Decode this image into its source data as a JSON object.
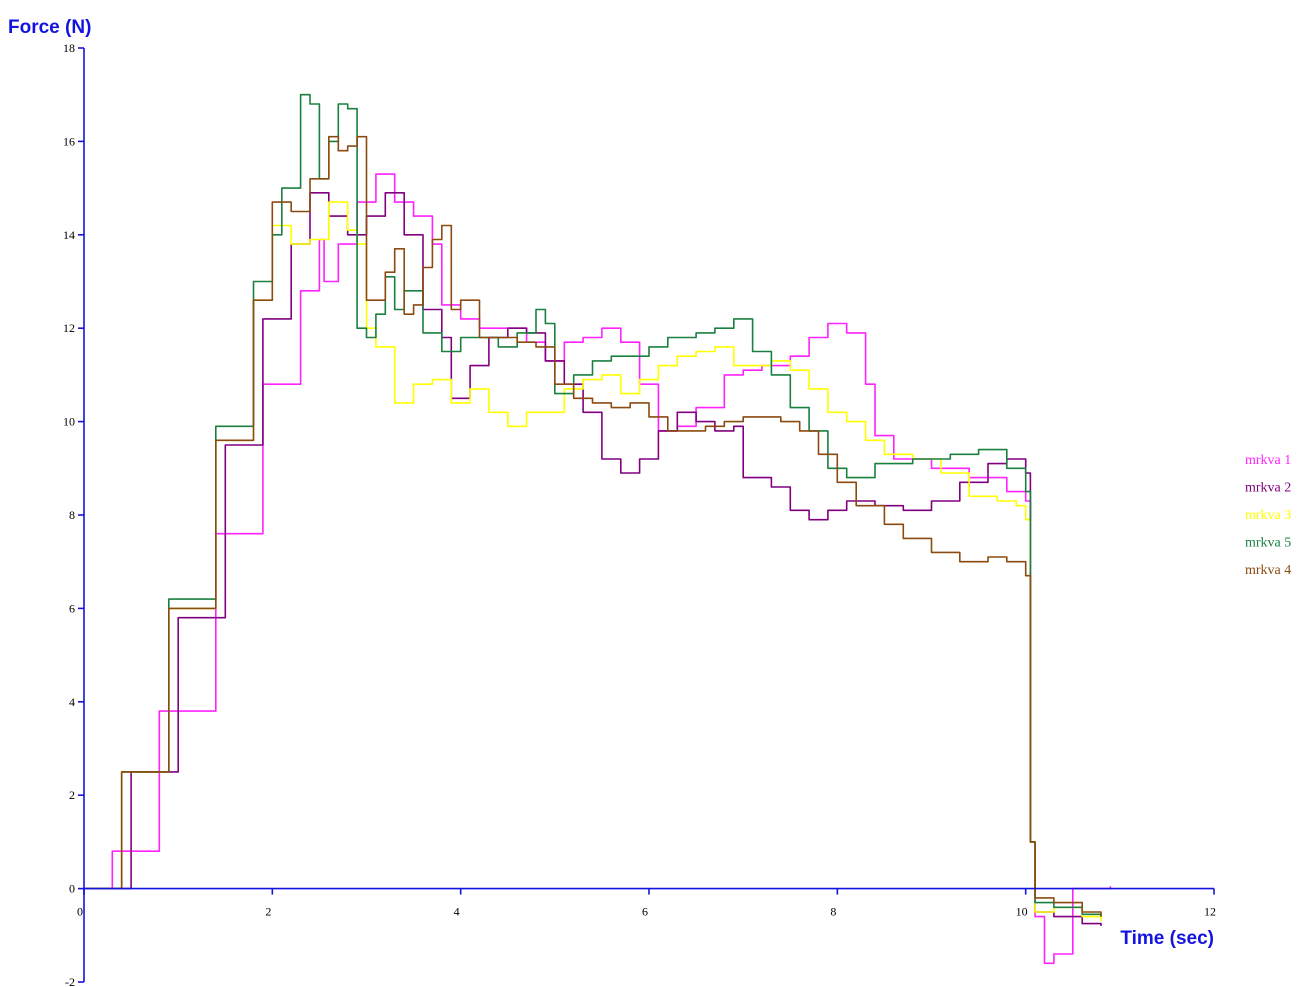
{
  "chart_data": {
    "type": "line",
    "xlabel": "Time (sec)",
    "ylabel": "Force (N)",
    "xlim": [
      0,
      12
    ],
    "ylim": [
      -2,
      18
    ],
    "x_ticks": [
      0,
      2,
      4,
      6,
      8,
      10,
      12
    ],
    "y_ticks": [
      -2,
      0,
      2,
      4,
      6,
      8,
      10,
      12,
      14,
      16,
      18
    ],
    "grid": false,
    "legend": "right",
    "series": [
      {
        "name": "mrkva 1",
        "color": "#ff22ff",
        "points": [
          [
            0,
            0
          ],
          [
            0.3,
            0.8
          ],
          [
            0.8,
            3.8
          ],
          [
            1.4,
            7.6
          ],
          [
            1.9,
            10.8
          ],
          [
            2.3,
            12.8
          ],
          [
            2.5,
            13.9
          ],
          [
            2.55,
            13.0
          ],
          [
            2.7,
            13.8
          ],
          [
            2.9,
            14.7
          ],
          [
            3.1,
            15.3
          ],
          [
            3.3,
            14.7
          ],
          [
            3.5,
            14.4
          ],
          [
            3.7,
            13.8
          ],
          [
            3.8,
            12.5
          ],
          [
            4.0,
            12.2
          ],
          [
            4.2,
            12.0
          ],
          [
            4.4,
            12.0
          ],
          [
            4.7,
            11.7
          ],
          [
            4.9,
            11.3
          ],
          [
            5.1,
            11.7
          ],
          [
            5.3,
            11.8
          ],
          [
            5.5,
            12.0
          ],
          [
            5.7,
            11.7
          ],
          [
            5.9,
            10.8
          ],
          [
            6.1,
            9.8
          ],
          [
            6.3,
            9.9
          ],
          [
            6.5,
            10.3
          ],
          [
            6.8,
            11.0
          ],
          [
            7.0,
            11.1
          ],
          [
            7.2,
            11.2
          ],
          [
            7.5,
            11.4
          ],
          [
            7.7,
            11.8
          ],
          [
            7.9,
            12.1
          ],
          [
            8.1,
            11.9
          ],
          [
            8.3,
            10.8
          ],
          [
            8.4,
            9.7
          ],
          [
            8.6,
            9.2
          ],
          [
            9.0,
            9.0
          ],
          [
            9.4,
            8.8
          ],
          [
            9.8,
            8.5
          ],
          [
            10.0,
            8.3
          ],
          [
            10.05,
            1.0
          ],
          [
            10.1,
            -0.6
          ],
          [
            10.2,
            -1.6
          ],
          [
            10.3,
            -1.4
          ],
          [
            10.5,
            0.0
          ],
          [
            10.9,
            0.05
          ]
        ]
      },
      {
        "name": "mrkva 2",
        "color": "#800080",
        "points": [
          [
            0,
            0
          ],
          [
            0.5,
            2.5
          ],
          [
            1.0,
            5.8
          ],
          [
            1.5,
            9.5
          ],
          [
            1.9,
            12.2
          ],
          [
            2.2,
            13.8
          ],
          [
            2.4,
            14.9
          ],
          [
            2.6,
            14.4
          ],
          [
            2.8,
            14.0
          ],
          [
            3.0,
            14.4
          ],
          [
            3.2,
            14.9
          ],
          [
            3.4,
            14.0
          ],
          [
            3.6,
            12.4
          ],
          [
            3.8,
            11.8
          ],
          [
            3.9,
            10.5
          ],
          [
            4.1,
            11.2
          ],
          [
            4.3,
            11.8
          ],
          [
            4.5,
            12.0
          ],
          [
            4.7,
            11.9
          ],
          [
            4.9,
            11.3
          ],
          [
            5.1,
            10.8
          ],
          [
            5.3,
            10.2
          ],
          [
            5.5,
            9.2
          ],
          [
            5.7,
            8.9
          ],
          [
            5.9,
            9.2
          ],
          [
            6.1,
            9.8
          ],
          [
            6.3,
            10.2
          ],
          [
            6.5,
            10.0
          ],
          [
            6.7,
            9.8
          ],
          [
            6.9,
            9.9
          ],
          [
            7.0,
            8.8
          ],
          [
            7.3,
            8.6
          ],
          [
            7.5,
            8.1
          ],
          [
            7.7,
            7.9
          ],
          [
            7.9,
            8.1
          ],
          [
            8.1,
            8.3
          ],
          [
            8.4,
            8.2
          ],
          [
            8.7,
            8.1
          ],
          [
            9.0,
            8.3
          ],
          [
            9.3,
            8.7
          ],
          [
            9.6,
            9.1
          ],
          [
            9.8,
            9.2
          ],
          [
            10.0,
            8.9
          ],
          [
            10.05,
            1.0
          ],
          [
            10.1,
            -0.5
          ],
          [
            10.3,
            -0.6
          ],
          [
            10.6,
            -0.75
          ],
          [
            10.8,
            -0.8
          ]
        ]
      },
      {
        "name": "mrkva 3",
        "color": "#ffff00",
        "points": [
          [
            0,
            0
          ],
          [
            0.4,
            2.5
          ],
          [
            0.9,
            6.0
          ],
          [
            1.4,
            9.6
          ],
          [
            1.8,
            12.6
          ],
          [
            2.0,
            14.2
          ],
          [
            2.2,
            13.8
          ],
          [
            2.4,
            13.9
          ],
          [
            2.6,
            14.7
          ],
          [
            2.8,
            14.1
          ],
          [
            2.9,
            13.8
          ],
          [
            3.0,
            12.0
          ],
          [
            3.1,
            11.6
          ],
          [
            3.3,
            10.4
          ],
          [
            3.5,
            10.8
          ],
          [
            3.7,
            10.9
          ],
          [
            3.9,
            10.4
          ],
          [
            4.1,
            10.7
          ],
          [
            4.3,
            10.2
          ],
          [
            4.5,
            9.9
          ],
          [
            4.7,
            10.2
          ],
          [
            4.9,
            10.2
          ],
          [
            5.1,
            10.7
          ],
          [
            5.3,
            10.9
          ],
          [
            5.5,
            11.0
          ],
          [
            5.7,
            10.6
          ],
          [
            5.9,
            10.9
          ],
          [
            6.1,
            11.2
          ],
          [
            6.3,
            11.4
          ],
          [
            6.5,
            11.5
          ],
          [
            6.7,
            11.6
          ],
          [
            6.9,
            11.2
          ],
          [
            7.1,
            11.2
          ],
          [
            7.3,
            11.3
          ],
          [
            7.5,
            11.1
          ],
          [
            7.7,
            10.7
          ],
          [
            7.9,
            10.2
          ],
          [
            8.1,
            10.0
          ],
          [
            8.3,
            9.6
          ],
          [
            8.5,
            9.3
          ],
          [
            8.8,
            9.2
          ],
          [
            9.1,
            8.9
          ],
          [
            9.4,
            8.4
          ],
          [
            9.7,
            8.3
          ],
          [
            9.9,
            8.2
          ],
          [
            10.0,
            7.9
          ],
          [
            10.05,
            1.0
          ],
          [
            10.1,
            -0.5
          ],
          [
            10.3,
            -0.4
          ],
          [
            10.6,
            -0.6
          ],
          [
            10.8,
            -0.7
          ]
        ]
      },
      {
        "name": "mrkva 5",
        "color": "#1a8040",
        "points": [
          [
            0,
            0
          ],
          [
            0.4,
            2.5
          ],
          [
            0.9,
            6.2
          ],
          [
            1.4,
            9.9
          ],
          [
            1.8,
            13.0
          ],
          [
            2.0,
            14.0
          ],
          [
            2.1,
            15.0
          ],
          [
            2.3,
            17.0
          ],
          [
            2.4,
            16.8
          ],
          [
            2.5,
            15.2
          ],
          [
            2.6,
            16.0
          ],
          [
            2.7,
            16.8
          ],
          [
            2.8,
            16.7
          ],
          [
            2.9,
            12.0
          ],
          [
            3.0,
            11.8
          ],
          [
            3.1,
            12.3
          ],
          [
            3.2,
            13.1
          ],
          [
            3.3,
            12.4
          ],
          [
            3.4,
            12.8
          ],
          [
            3.6,
            11.9
          ],
          [
            3.8,
            11.5
          ],
          [
            4.0,
            11.8
          ],
          [
            4.2,
            11.8
          ],
          [
            4.4,
            11.6
          ],
          [
            4.6,
            11.9
          ],
          [
            4.8,
            12.4
          ],
          [
            4.9,
            12.1
          ],
          [
            5.0,
            10.6
          ],
          [
            5.2,
            11.0
          ],
          [
            5.4,
            11.3
          ],
          [
            5.6,
            11.4
          ],
          [
            5.8,
            11.4
          ],
          [
            6.0,
            11.6
          ],
          [
            6.2,
            11.8
          ],
          [
            6.5,
            11.9
          ],
          [
            6.7,
            12.0
          ],
          [
            6.9,
            12.2
          ],
          [
            7.1,
            11.5
          ],
          [
            7.3,
            11.0
          ],
          [
            7.5,
            10.3
          ],
          [
            7.7,
            9.8
          ],
          [
            7.9,
            9.0
          ],
          [
            8.1,
            8.8
          ],
          [
            8.4,
            9.1
          ],
          [
            8.8,
            9.2
          ],
          [
            9.2,
            9.3
          ],
          [
            9.5,
            9.4
          ],
          [
            9.8,
            9.0
          ],
          [
            10.0,
            8.5
          ],
          [
            10.05,
            1.0
          ],
          [
            10.1,
            -0.3
          ],
          [
            10.3,
            -0.4
          ],
          [
            10.6,
            -0.55
          ],
          [
            10.8,
            -0.6
          ]
        ]
      },
      {
        "name": "mrkva 4",
        "color": "#8b4a10",
        "points": [
          [
            0,
            0
          ],
          [
            0.4,
            2.5
          ],
          [
            0.9,
            6.0
          ],
          [
            1.4,
            9.6
          ],
          [
            1.8,
            12.6
          ],
          [
            2.0,
            14.7
          ],
          [
            2.2,
            14.5
          ],
          [
            2.4,
            15.2
          ],
          [
            2.6,
            16.1
          ],
          [
            2.7,
            15.8
          ],
          [
            2.8,
            15.9
          ],
          [
            2.9,
            16.1
          ],
          [
            3.0,
            12.6
          ],
          [
            3.2,
            13.2
          ],
          [
            3.3,
            13.7
          ],
          [
            3.4,
            12.3
          ],
          [
            3.5,
            12.5
          ],
          [
            3.6,
            13.3
          ],
          [
            3.7,
            13.9
          ],
          [
            3.8,
            14.2
          ],
          [
            3.9,
            12.4
          ],
          [
            4.0,
            12.6
          ],
          [
            4.2,
            11.8
          ],
          [
            4.4,
            11.8
          ],
          [
            4.6,
            11.7
          ],
          [
            4.8,
            11.6
          ],
          [
            5.0,
            10.8
          ],
          [
            5.2,
            10.5
          ],
          [
            5.4,
            10.4
          ],
          [
            5.6,
            10.3
          ],
          [
            5.8,
            10.4
          ],
          [
            6.0,
            10.1
          ],
          [
            6.2,
            9.8
          ],
          [
            6.4,
            9.8
          ],
          [
            6.6,
            9.9
          ],
          [
            6.8,
            10.0
          ],
          [
            7.0,
            10.1
          ],
          [
            7.2,
            10.1
          ],
          [
            7.4,
            10.0
          ],
          [
            7.6,
            9.8
          ],
          [
            7.8,
            9.3
          ],
          [
            8.0,
            8.7
          ],
          [
            8.2,
            8.2
          ],
          [
            8.5,
            7.8
          ],
          [
            8.7,
            7.5
          ],
          [
            9.0,
            7.2
          ],
          [
            9.3,
            7.0
          ],
          [
            9.6,
            7.1
          ],
          [
            9.8,
            7.0
          ],
          [
            10.0,
            6.7
          ],
          [
            10.05,
            1.0
          ],
          [
            10.1,
            -0.2
          ],
          [
            10.3,
            -0.3
          ],
          [
            10.6,
            -0.5
          ],
          [
            10.8,
            -0.6
          ]
        ]
      }
    ]
  }
}
